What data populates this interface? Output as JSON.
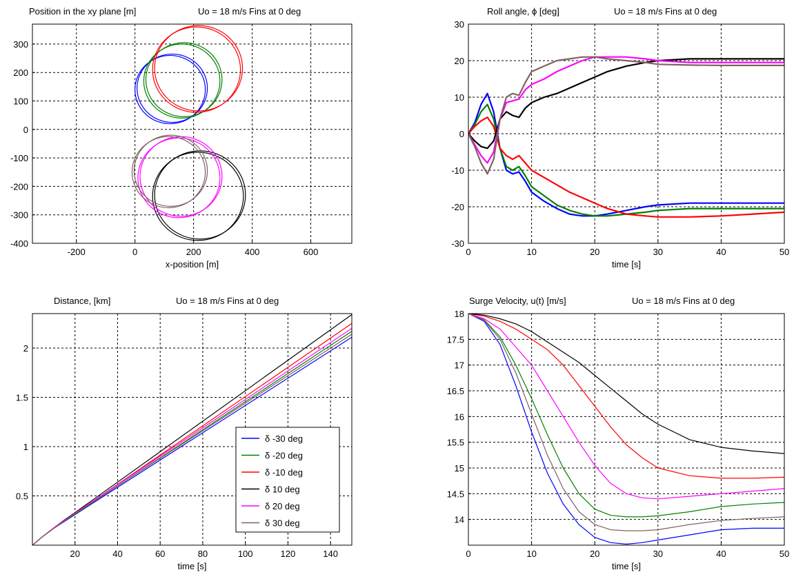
{
  "chart_data": [
    {
      "type": "line",
      "title": "Position in the xy plane  [m]",
      "subtitle": "Uo = 18 m/s  Fins at 0 deg",
      "xlabel": "x-position   [m]",
      "ylabel": "",
      "xlim": [
        -350,
        740
      ],
      "ylim": [
        -400,
        370
      ],
      "xticks": [
        -200,
        0,
        200,
        400,
        600
      ],
      "yticks": [
        -400,
        -300,
        -200,
        -100,
        0,
        100,
        200,
        300
      ],
      "grid": true,
      "series": [
        {
          "color": "#0000ff",
          "shape": "circle",
          "cx": 120,
          "cy": 140,
          "r": 120
        },
        {
          "color": "#008000",
          "shape": "circle",
          "cx": 160,
          "cy": 170,
          "r": 130
        },
        {
          "color": "#ff0000",
          "shape": "circle",
          "cx": 210,
          "cy": 210,
          "r": 150
        },
        {
          "color": "#000000",
          "shape": "circle",
          "cx": 215,
          "cy": -235,
          "r": 155
        },
        {
          "color": "#ff00ff",
          "shape": "circle",
          "cx": 150,
          "cy": -170,
          "r": 140
        },
        {
          "color": "#806060",
          "shape": "circle",
          "cx": 115,
          "cy": -150,
          "r": 125
        }
      ]
    },
    {
      "type": "line",
      "title": "Roll angle, ϕ  [deg]",
      "subtitle": "Uo = 18 m/s  Fins at 0 deg",
      "xlabel": "time [s]",
      "ylabel": "",
      "xlim": [
        0,
        50
      ],
      "ylim": [
        -30,
        30
      ],
      "xticks": [
        0,
        10,
        20,
        30,
        40,
        50
      ],
      "yticks": [
        -30,
        -20,
        -10,
        0,
        10,
        20,
        30
      ],
      "grid": true,
      "x": [
        0,
        1,
        2,
        3,
        4,
        5,
        6,
        7,
        8,
        9,
        10,
        12,
        14,
        16,
        18,
        20,
        22,
        25,
        28,
        30,
        35,
        40,
        45,
        50
      ],
      "series": [
        {
          "color": "#0000ff",
          "values": [
            0,
            3,
            8,
            11,
            6,
            -4,
            -10,
            -11,
            -10.5,
            -13,
            -16,
            -18.5,
            -20.5,
            -22,
            -22.5,
            -22.5,
            -22,
            -21,
            -20,
            -19.5,
            -19,
            -19,
            -19,
            -19
          ]
        },
        {
          "color": "#008000",
          "values": [
            0,
            2.5,
            6,
            8,
            4,
            -4,
            -9,
            -10,
            -9,
            -11.5,
            -14.5,
            -17,
            -19.5,
            -21,
            -22,
            -22.5,
            -22.5,
            -22,
            -21.5,
            -21,
            -20.5,
            -20.5,
            -20.5,
            -20.5
          ]
        },
        {
          "color": "#ff0000",
          "values": [
            0,
            2,
            3.5,
            4.5,
            2,
            -4,
            -6,
            -7,
            -6,
            -8,
            -10,
            -12,
            -14,
            -16,
            -17.5,
            -19,
            -20.5,
            -22,
            -22.5,
            -22.8,
            -22.8,
            -22.5,
            -22,
            -21.5
          ]
        },
        {
          "color": "#000000",
          "values": [
            0,
            -2,
            -3.5,
            -4,
            -2,
            4,
            6,
            5,
            4.5,
            7,
            8.5,
            10,
            11,
            12.5,
            14,
            15.5,
            17,
            18.5,
            19.5,
            20,
            20.5,
            20.5,
            20.5,
            20.5
          ]
        },
        {
          "color": "#ff00ff",
          "values": [
            0,
            -3,
            -6,
            -8,
            -5,
            4,
            8.5,
            9,
            9.5,
            12,
            13.5,
            15,
            17,
            18.5,
            20,
            21,
            21,
            21,
            20.5,
            20,
            19.5,
            19.5,
            19.5,
            19.5
          ]
        },
        {
          "color": "#806060",
          "values": [
            0,
            -3.5,
            -8,
            -11,
            -7,
            4,
            10,
            11,
            10.5,
            14,
            17,
            18.5,
            20,
            20.5,
            21,
            21,
            20.5,
            20,
            19.5,
            19,
            18.8,
            18.7,
            18.7,
            18.7
          ]
        }
      ]
    },
    {
      "type": "line",
      "title": "Distance, [km]",
      "subtitle": "Uo = 18 m/s  Fins at 0 deg",
      "xlabel": "time [s]",
      "ylabel": "",
      "xlim": [
        0,
        150
      ],
      "ylim": [
        0,
        2.35
      ],
      "xticks": [
        20,
        40,
        60,
        80,
        100,
        120,
        140
      ],
      "yticks": [
        0.5,
        1,
        1.5,
        2
      ],
      "grid": true,
      "legend_position": "bottom-right",
      "x": [
        0,
        5,
        10,
        15,
        20,
        150
      ],
      "series": [
        {
          "name": "δ  -30  deg",
          "color": "#0000ff",
          "values": [
            0,
            0.09,
            0.17,
            0.24,
            0.31,
            2.11
          ]
        },
        {
          "name": "δ  -20  deg",
          "color": "#008000",
          "values": [
            0,
            0.09,
            0.17,
            0.245,
            0.315,
            2.17
          ]
        },
        {
          "name": "δ  -10  deg",
          "color": "#ff0000",
          "values": [
            0,
            0.09,
            0.175,
            0.25,
            0.32,
            2.25
          ]
        },
        {
          "name": "δ  10  deg",
          "color": "#000000",
          "values": [
            0,
            0.09,
            0.175,
            0.255,
            0.33,
            2.34
          ]
        },
        {
          "name": "δ  20  deg",
          "color": "#ff00ff",
          "values": [
            0,
            0.09,
            0.175,
            0.25,
            0.325,
            2.2
          ]
        },
        {
          "name": "δ  30  deg",
          "color": "#806060",
          "values": [
            0,
            0.09,
            0.17,
            0.245,
            0.32,
            2.14
          ]
        }
      ]
    },
    {
      "type": "line",
      "title": "Surge Velocity,  u(t)  [m/s]",
      "subtitle": "Uo = 18 m/s  Fins at 0 deg",
      "xlabel": "time [s]",
      "ylabel": "",
      "xlim": [
        0,
        50
      ],
      "ylim": [
        13.5,
        18
      ],
      "xticks": [
        0,
        10,
        20,
        30,
        40,
        50
      ],
      "yticks": [
        14,
        14.5,
        15,
        15.5,
        16,
        16.5,
        17,
        17.5,
        18
      ],
      "grid": true,
      "x": [
        0,
        2.5,
        5,
        7.5,
        10,
        12.5,
        15,
        17.5,
        20,
        22.5,
        25,
        27.5,
        30,
        35,
        40,
        45,
        50
      ],
      "series": [
        {
          "color": "#0000ff",
          "values": [
            18,
            17.85,
            17.4,
            16.6,
            15.7,
            14.9,
            14.3,
            13.9,
            13.65,
            13.55,
            13.52,
            13.55,
            13.6,
            13.7,
            13.8,
            13.83,
            13.83
          ]
        },
        {
          "color": "#008000",
          "values": [
            18,
            17.88,
            17.55,
            17.0,
            16.35,
            15.65,
            15.0,
            14.5,
            14.2,
            14.08,
            14.05,
            14.05,
            14.07,
            14.15,
            14.25,
            14.3,
            14.33
          ]
        },
        {
          "color": "#ff0000",
          "values": [
            18,
            17.95,
            17.85,
            17.7,
            17.5,
            17.3,
            17.0,
            16.6,
            16.2,
            15.8,
            15.45,
            15.2,
            15.0,
            14.85,
            14.8,
            14.8,
            14.82
          ]
        },
        {
          "color": "#000000",
          "values": [
            18,
            17.97,
            17.9,
            17.8,
            17.65,
            17.45,
            17.25,
            17.05,
            16.8,
            16.55,
            16.3,
            16.05,
            15.85,
            15.55,
            15.4,
            15.33,
            15.28
          ]
        },
        {
          "color": "#ff00ff",
          "values": [
            18,
            17.9,
            17.7,
            17.35,
            17.0,
            16.5,
            16.0,
            15.5,
            15.05,
            14.7,
            14.5,
            14.42,
            14.4,
            14.45,
            14.5,
            14.55,
            14.6
          ]
        },
        {
          "color": "#806060",
          "values": [
            18,
            17.87,
            17.5,
            16.85,
            16.05,
            15.25,
            14.6,
            14.15,
            13.9,
            13.8,
            13.78,
            13.78,
            13.8,
            13.9,
            13.98,
            14.02,
            14.05
          ]
        }
      ]
    }
  ]
}
